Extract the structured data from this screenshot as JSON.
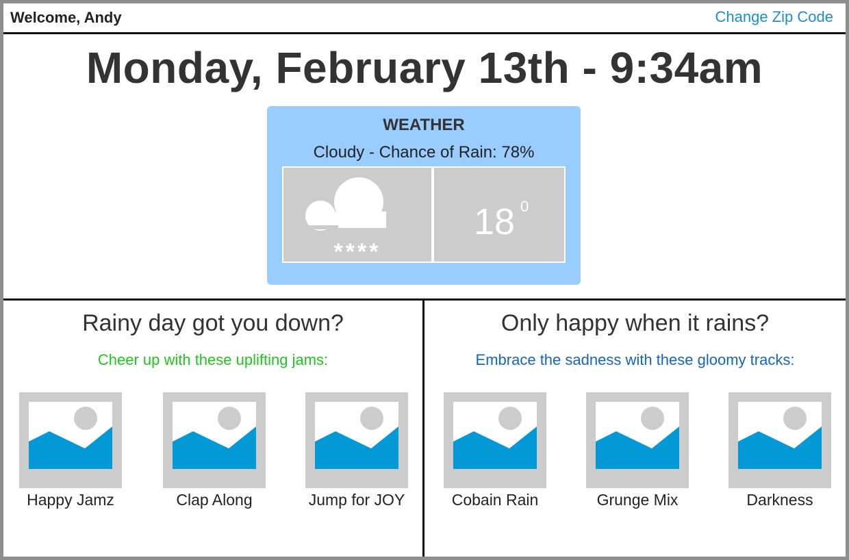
{
  "header": {
    "welcome_text": "Welcome, Andy",
    "change_zip_label": "Change Zip Code"
  },
  "datetime": "Monday, February 13th - 9:34am",
  "weather": {
    "title": "WEATHER",
    "condition": "Cloudy - Chance of Rain: 78%",
    "icon": "cloud-icon",
    "rain_marks": "****",
    "temperature": "18",
    "degree": "0"
  },
  "happy": {
    "title": "Rainy day got you down?",
    "subtitle": "Cheer up with these uplifting jams:",
    "subtitle_color": "#22c41f",
    "playlists": [
      "Happy Jamz",
      "Clap Along",
      "Jump for JOY"
    ]
  },
  "sad": {
    "title": "Only happy when it rains?",
    "subtitle": "Embrace the sadness with these gloomy tracks:",
    "subtitle_color": "#1565c0",
    "playlists": [
      "Cobain Rain",
      "Grunge Mix",
      "Darkness"
    ]
  },
  "colors": {
    "accent_link": "#1a8fd1",
    "weather_card": "#99ccff",
    "weather_panel": "#cccccc",
    "thumb_sky": "#ffffff",
    "thumb_mountain": "#0398d6"
  }
}
